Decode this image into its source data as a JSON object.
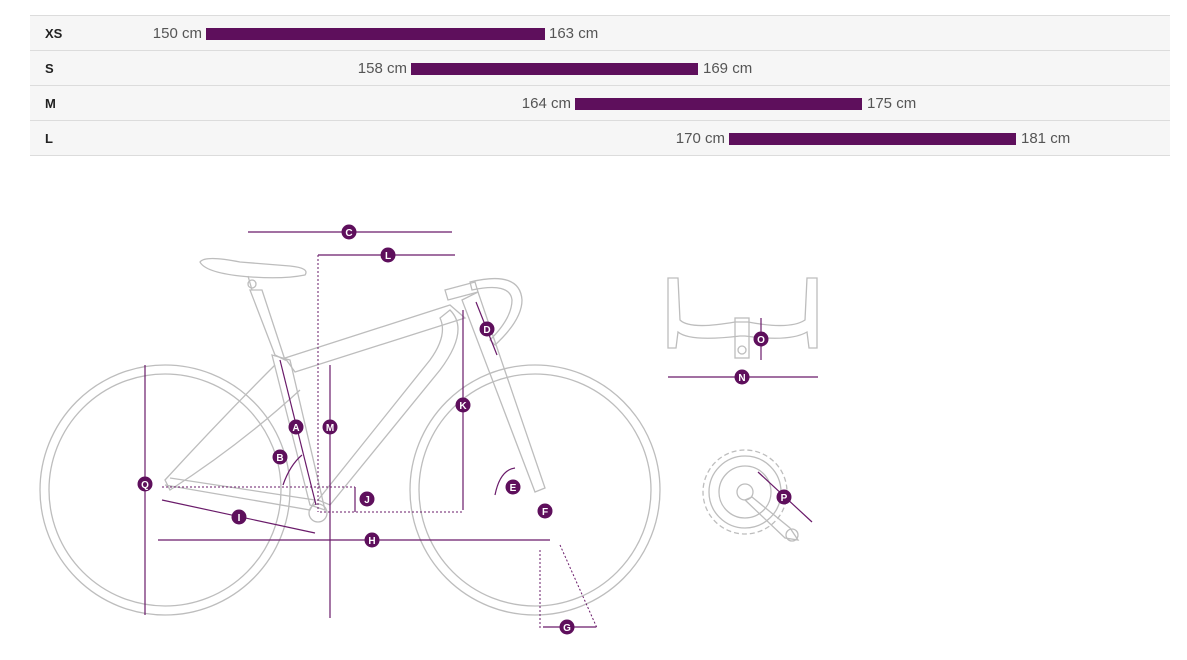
{
  "size_table": {
    "rows": [
      {
        "size": "XS",
        "min": "150 cm",
        "max": "163 cm",
        "min_cm": 150,
        "max_cm": 163
      },
      {
        "size": "S",
        "min": "158 cm",
        "max": "169 cm",
        "min_cm": 158,
        "max_cm": 169
      },
      {
        "size": "M",
        "min": "164 cm",
        "max": "175 cm",
        "min_cm": 164,
        "max_cm": 175
      },
      {
        "size": "L",
        "min": "170 cm",
        "max": "181 cm",
        "min_cm": 170,
        "max_cm": 181
      }
    ],
    "bar_color": "#5e0f5c"
  },
  "geometry_labels": [
    "A",
    "B",
    "C",
    "D",
    "E",
    "F",
    "G",
    "H",
    "I",
    "J",
    "K",
    "L",
    "M",
    "N",
    "O",
    "P",
    "Q"
  ],
  "colors": {
    "accent": "#5e0f5c",
    "frame_line": "#bdbdbd"
  }
}
